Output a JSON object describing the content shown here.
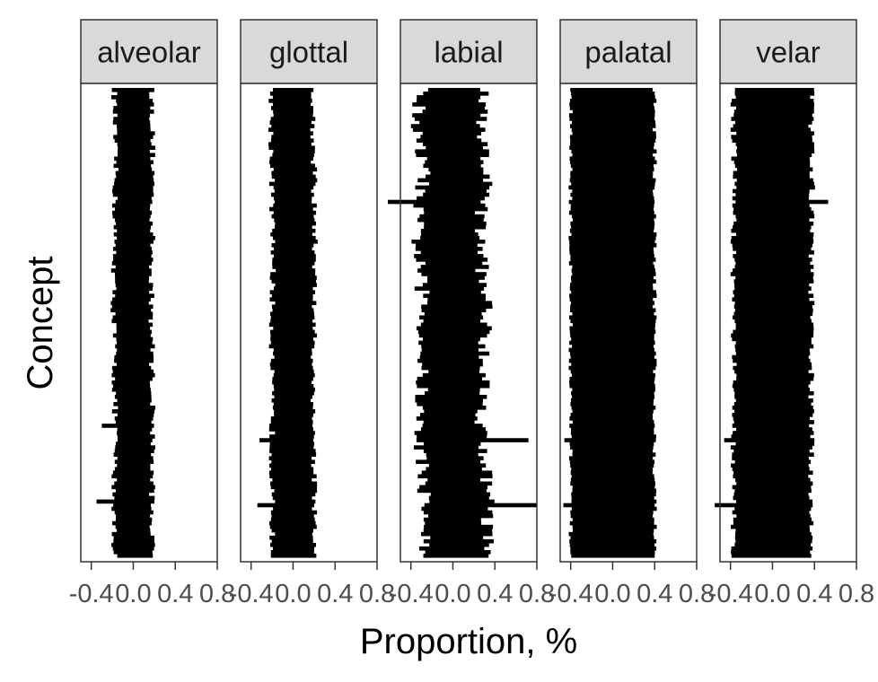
{
  "chart_data": {
    "type": "bar",
    "orientation": "horizontal",
    "xlabel": "Proportion, %",
    "ylabel": "Concept",
    "xlim": [
      -0.5,
      0.8
    ],
    "x_ticks": [
      "-0.4",
      "0.0",
      "0.4",
      "0.8"
    ],
    "x_tick_values": [
      -0.4,
      0.0,
      0.4,
      0.8
    ],
    "y_ticks_shown": false,
    "grid": false,
    "legend": "none",
    "facets": [
      {
        "label": "alveolar",
        "center_profile": [
          0.0,
          0.0,
          0.01,
          0.0,
          0.0,
          -0.01,
          0.0,
          0.0,
          0.01,
          0.0,
          0.0,
          0.0
        ],
        "half_range": 0.18,
        "jitter": 0.03,
        "outliers": [
          {
            "row": 0.72,
            "left": -0.3
          },
          {
            "row": 0.88,
            "left": -0.35
          }
        ]
      },
      {
        "label": "glottal",
        "center_profile": [
          0.0,
          -0.01,
          0.0,
          0.0,
          0.01,
          0.0,
          0.0,
          -0.01,
          0.0,
          0.0,
          0.0,
          0.0
        ],
        "half_range": 0.2,
        "jitter": 0.03,
        "outliers": [
          {
            "row": 0.75,
            "left": -0.32
          },
          {
            "row": 0.89,
            "left": -0.34
          }
        ]
      },
      {
        "label": "labial",
        "center_profile": [
          0.0,
          -0.05,
          0.03,
          -0.04,
          -0.03,
          0.02,
          0.01,
          0.0,
          -0.03,
          0.02,
          0.04,
          0.02
        ],
        "half_range": 0.3,
        "jitter": 0.07,
        "outliers": [
          {
            "row": 0.24,
            "left": -0.62
          },
          {
            "row": 0.75,
            "right": 0.72
          },
          {
            "row": 0.89,
            "right": 0.8
          }
        ]
      },
      {
        "label": "palatal",
        "center_profile": [
          0.0,
          0.0,
          0.0,
          0.0,
          0.0,
          0.0,
          0.0,
          0.0,
          0.0,
          0.0,
          0.0,
          0.0
        ],
        "half_range": 0.4,
        "jitter": 0.02,
        "outliers": [
          {
            "row": 0.75,
            "left": -0.46
          },
          {
            "row": 0.89,
            "left": -0.47
          }
        ]
      },
      {
        "label": "velar",
        "center_profile": [
          0.0,
          0.0,
          0.01,
          0.0,
          0.0,
          0.0,
          0.0,
          0.0,
          0.0,
          0.0,
          0.0,
          0.0
        ],
        "half_range": 0.37,
        "jitter": 0.03,
        "outliers": [
          {
            "row": 0.24,
            "right": 0.53
          },
          {
            "row": 0.75,
            "left": -0.46
          },
          {
            "row": 0.89,
            "left": -0.55
          }
        ]
      }
    ],
    "n_concepts": 130,
    "colors": {
      "bars": "#000000",
      "strip_fill": "#d9d9d9",
      "strip_border": "#333333",
      "panel_border": "#333333",
      "tick_text": "#4d4d4d",
      "axis_title": "#000000"
    }
  }
}
